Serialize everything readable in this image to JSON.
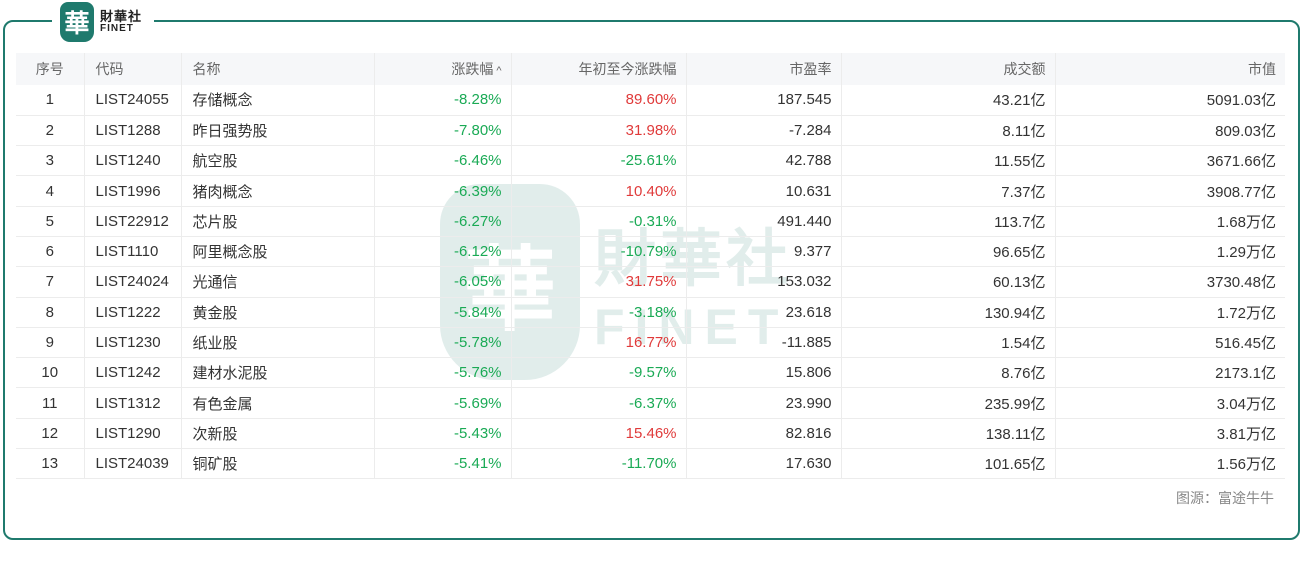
{
  "logo": {
    "seal": "華",
    "cn": "財華社",
    "en": "FINET"
  },
  "watermark": {
    "seal": "華",
    "cn": "財華社",
    "en": "FINET"
  },
  "colors": {
    "frame": "#1f7a6d",
    "up": "#e03a3a",
    "down": "#1aaa55",
    "header_bg": "#f6f7f9"
  },
  "table": {
    "headers": {
      "idx": "序号",
      "code": "代码",
      "name": "名称",
      "change": "涨跌幅",
      "sort_icon": "^",
      "ytd": "年初至今涨跌幅",
      "pe": "市盈率",
      "turnover": "成交额",
      "cap": "市值"
    },
    "rows": [
      {
        "idx": "1",
        "code": "LIST24055",
        "name": "存储概念",
        "change": "-8.28%",
        "ytd": "89.60%",
        "ytd_dir": "up",
        "pe": "187.545",
        "turnover": "43.21亿",
        "cap": "5091.03亿"
      },
      {
        "idx": "2",
        "code": "LIST1288",
        "name": "昨日强势股",
        "change": "-7.80%",
        "ytd": "31.98%",
        "ytd_dir": "up",
        "pe": "-7.284",
        "turnover": "8.11亿",
        "cap": "809.03亿"
      },
      {
        "idx": "3",
        "code": "LIST1240",
        "name": "航空股",
        "change": "-6.46%",
        "ytd": "-25.61%",
        "ytd_dir": "down",
        "pe": "42.788",
        "turnover": "11.55亿",
        "cap": "3671.66亿"
      },
      {
        "idx": "4",
        "code": "LIST1996",
        "name": "猪肉概念",
        "change": "-6.39%",
        "ytd": "10.40%",
        "ytd_dir": "up",
        "pe": "10.631",
        "turnover": "7.37亿",
        "cap": "3908.77亿"
      },
      {
        "idx": "5",
        "code": "LIST22912",
        "name": "芯片股",
        "change": "-6.27%",
        "ytd": "-0.31%",
        "ytd_dir": "down",
        "pe": "491.440",
        "turnover": "113.7亿",
        "cap": "1.68万亿"
      },
      {
        "idx": "6",
        "code": "LIST1110",
        "name": "阿里概念股",
        "change": "-6.12%",
        "ytd": "-10.79%",
        "ytd_dir": "down",
        "pe": "9.377",
        "turnover": "96.65亿",
        "cap": "1.29万亿"
      },
      {
        "idx": "7",
        "code": "LIST24024",
        "name": "光通信",
        "change": "-6.05%",
        "ytd": "31.75%",
        "ytd_dir": "up",
        "pe": "153.032",
        "turnover": "60.13亿",
        "cap": "3730.48亿"
      },
      {
        "idx": "8",
        "code": "LIST1222",
        "name": "黄金股",
        "change": "-5.84%",
        "ytd": "-3.18%",
        "ytd_dir": "down",
        "pe": "23.618",
        "turnover": "130.94亿",
        "cap": "1.72万亿"
      },
      {
        "idx": "9",
        "code": "LIST1230",
        "name": "纸业股",
        "change": "-5.78%",
        "ytd": "16.77%",
        "ytd_dir": "up",
        "pe": "-11.885",
        "turnover": "1.54亿",
        "cap": "516.45亿"
      },
      {
        "idx": "10",
        "code": "LIST1242",
        "name": "建材水泥股",
        "change": "-5.76%",
        "ytd": "-9.57%",
        "ytd_dir": "down",
        "pe": "15.806",
        "turnover": "8.76亿",
        "cap": "2173.1亿"
      },
      {
        "idx": "11",
        "code": "LIST1312",
        "name": "有色金属",
        "change": "-5.69%",
        "ytd": "-6.37%",
        "ytd_dir": "down",
        "pe": "23.990",
        "turnover": "235.99亿",
        "cap": "3.04万亿"
      },
      {
        "idx": "12",
        "code": "LIST1290",
        "name": "次新股",
        "change": "-5.43%",
        "ytd": "15.46%",
        "ytd_dir": "up",
        "pe": "82.816",
        "turnover": "138.11亿",
        "cap": "3.81万亿"
      },
      {
        "idx": "13",
        "code": "LIST24039",
        "name": "铜矿股",
        "change": "-5.41%",
        "ytd": "-11.70%",
        "ytd_dir": "down",
        "pe": "17.630",
        "turnover": "101.65亿",
        "cap": "1.56万亿"
      }
    ]
  },
  "source": "图源：富途牛牛"
}
